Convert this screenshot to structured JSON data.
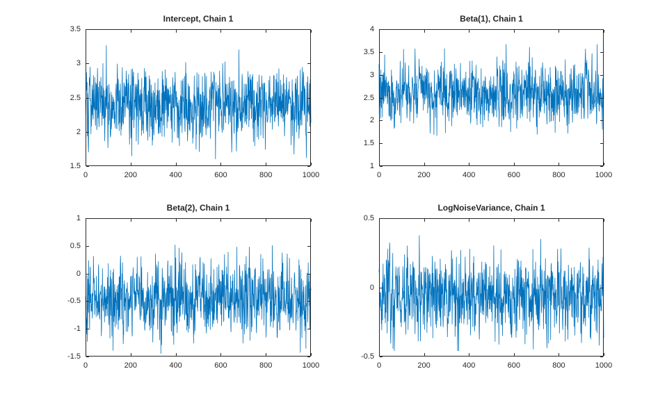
{
  "figure": {
    "background": "#ffffff",
    "trace_color": "#0072BD",
    "axis_color": "#262626",
    "text_color": "#262626",
    "tick_length": 4,
    "tick_direction": "in",
    "box": true,
    "grid": false
  },
  "chart_data": [
    {
      "type": "line",
      "title": "Intercept, Chain 1",
      "xlabel": "",
      "ylabel": "",
      "xlim": [
        0,
        1000
      ],
      "xtick_values": [
        0,
        200,
        400,
        600,
        800,
        1000
      ],
      "xtick_labels": [
        "0",
        "200",
        "400",
        "600",
        "800",
        "1000"
      ],
      "ylim": [
        1.5,
        3.5
      ],
      "ytick_values": [
        1.5,
        2,
        2.5,
        3,
        3.5
      ],
      "ytick_labels": [
        "1.5",
        "2",
        "2.5",
        "3",
        "3.5"
      ],
      "n_samples": 1000,
      "series_stats": {
        "mean": 2.42,
        "std": 0.27,
        "min": 1.55,
        "max": 3.45,
        "ar1": 0.2,
        "seed": 101
      },
      "grid": false,
      "legend": false
    },
    {
      "type": "line",
      "title": "Beta(1), Chain 1",
      "xlabel": "",
      "ylabel": "",
      "xlim": [
        0,
        1000
      ],
      "xtick_values": [
        0,
        200,
        400,
        600,
        800,
        1000
      ],
      "xtick_labels": [
        "0",
        "200",
        "400",
        "600",
        "800",
        "1000"
      ],
      "ylim": [
        1,
        4
      ],
      "ytick_values": [
        1,
        1.5,
        2,
        2.5,
        3,
        3.5,
        4
      ],
      "ytick_labels": [
        "1",
        "1.5",
        "2",
        "2.5",
        "3",
        "3.5",
        "4"
      ],
      "n_samples": 1000,
      "series_stats": {
        "mean": 2.6,
        "std": 0.33,
        "min": 1.5,
        "max": 3.67,
        "ar1": 0.2,
        "seed": 202
      },
      "grid": false,
      "legend": false
    },
    {
      "type": "line",
      "title": "Beta(2), Chain 1",
      "xlabel": "",
      "ylabel": "",
      "xlim": [
        0,
        1000
      ],
      "xtick_values": [
        0,
        200,
        400,
        600,
        800,
        1000
      ],
      "xtick_labels": [
        "0",
        "200",
        "400",
        "600",
        "800",
        "1000"
      ],
      "ylim": [
        -1.5,
        1
      ],
      "ytick_values": [
        -1.5,
        -1,
        -0.5,
        0,
        0.5,
        1
      ],
      "ytick_labels": [
        "-1.5",
        "-1",
        "-0.5",
        "0",
        "0.5",
        "1"
      ],
      "n_samples": 1000,
      "series_stats": {
        "mean": -0.45,
        "std": 0.32,
        "min": -1.45,
        "max": 0.52,
        "ar1": 0.2,
        "seed": 303
      },
      "grid": false,
      "legend": false
    },
    {
      "type": "line",
      "title": "LogNoiseVariance, Chain 1",
      "xlabel": "",
      "ylabel": "",
      "xlim": [
        0,
        1000
      ],
      "xtick_values": [
        0,
        200,
        400,
        600,
        800,
        1000
      ],
      "xtick_labels": [
        "0",
        "200",
        "400",
        "600",
        "800",
        "1000"
      ],
      "ylim": [
        -0.5,
        0.5
      ],
      "ytick_values": [
        -0.5,
        0,
        0.5
      ],
      "ytick_labels": [
        "-0.5",
        "0",
        "0.5"
      ],
      "n_samples": 1000,
      "series_stats": {
        "mean": -0.06,
        "std": 0.15,
        "min": -0.46,
        "max": 0.43,
        "ar1": 0.2,
        "seed": 404
      },
      "grid": false,
      "legend": false
    }
  ]
}
